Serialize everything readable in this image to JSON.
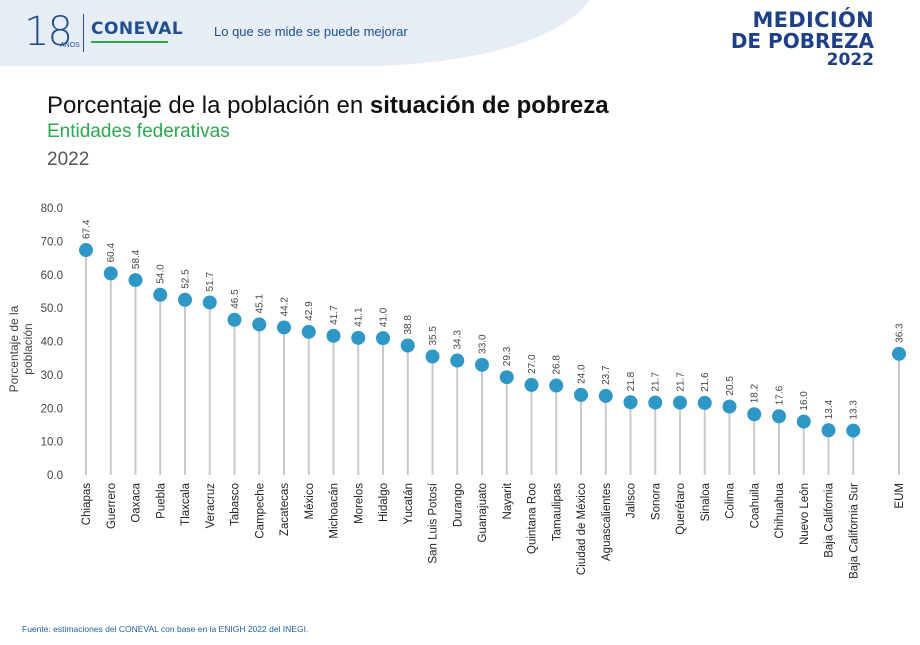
{
  "header": {
    "logo_number": "18",
    "logo_sub": "AÑOS",
    "org": "CONEVAL",
    "slogan": "Lo que se mide se puede mejorar",
    "brand_line1": "MEDICIÓN",
    "brand_line2": "DE POBREZA",
    "brand_line3": "2022",
    "colors": {
      "primary": "#1f4f8f",
      "green": "#27a84a",
      "marker": "#2e97c6"
    }
  },
  "chart_data": {
    "type": "lollipop",
    "title_plain": "Porcentaje de la población en ",
    "title_bold": "situación de pobreza",
    "subtitle": "Entidades federativas",
    "year": "2022",
    "ylabel": "Porcentaje de la población",
    "ylim": [
      0,
      80
    ],
    "yticks": [
      "0.0",
      "10.0",
      "20.0",
      "30.0",
      "40.0",
      "50.0",
      "60.0",
      "70.0",
      "80.0"
    ],
    "categories": [
      "Chiapas",
      "Guerrero",
      "Oaxaca",
      "Puebla",
      "Tlaxcala",
      "Veracruz",
      "Tabasco",
      "Campeche",
      "Zacatecas",
      "México",
      "Michoacán",
      "Morelos",
      "Hidalgo",
      "Yucatán",
      "San Luis Potosí",
      "Durango",
      "Guanajuato",
      "Nayarit",
      "Quintana Roo",
      "Tamaulipas",
      "Ciudad de México",
      "Aguascalientes",
      "Jalisco",
      "Sonora",
      "Querétaro",
      "Sinaloa",
      "Colima",
      "Coahuila",
      "Chihuahua",
      "Nuevo León",
      "Baja California",
      "Baja California Sur",
      "EUM"
    ],
    "values": [
      67.4,
      60.4,
      58.4,
      54.0,
      52.5,
      51.7,
      46.5,
      45.1,
      44.2,
      42.9,
      41.7,
      41.1,
      41.0,
      38.8,
      35.5,
      34.3,
      33.0,
      29.3,
      27.0,
      26.8,
      24.0,
      23.7,
      21.8,
      21.7,
      21.7,
      21.6,
      20.5,
      18.2,
      17.6,
      16.0,
      13.4,
      13.3,
      36.3
    ],
    "value_labels": [
      "67.4",
      "60.4",
      "58.4",
      "54.0",
      "52.5",
      "51.7",
      "46.5",
      "45.1",
      "44.2",
      "42.9",
      "41.7",
      "41.1",
      "41.0",
      "38.8",
      "35.5",
      "34.3",
      "33.0",
      "29.3",
      "27.0",
      "26.8",
      "24.0",
      "23.7",
      "21.8",
      "21.7",
      "21.7",
      "21.6",
      "20.5",
      "18.2",
      "17.6",
      "16.0",
      "13.4",
      "13.3",
      "36.3"
    ],
    "grid": false
  },
  "footer": {
    "source": "Fuente: estimaciones del CONEVAL con base en la ENIGH 2022 del INEGI."
  }
}
